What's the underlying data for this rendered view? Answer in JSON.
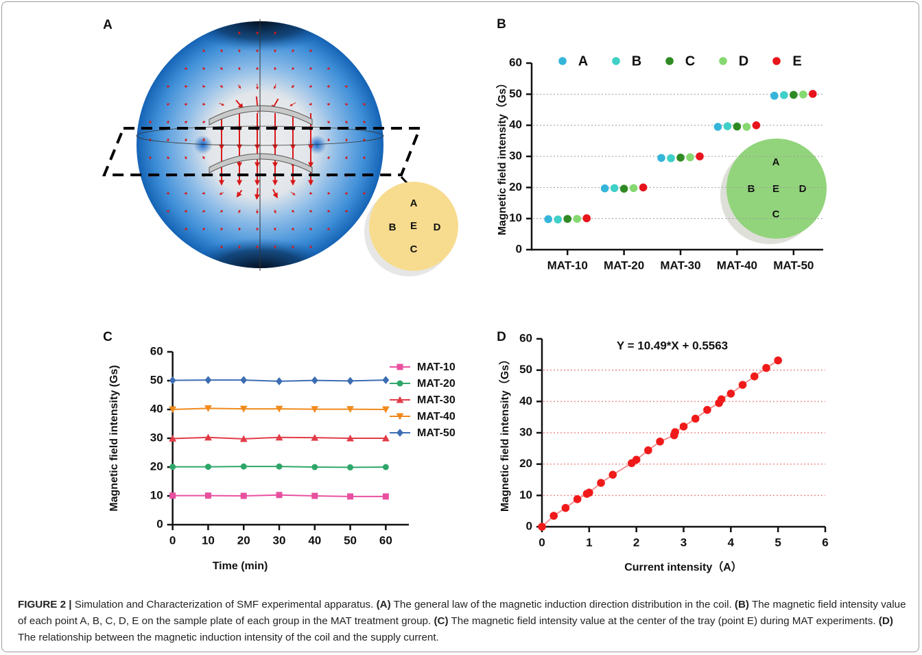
{
  "panel_a": {
    "label": "A",
    "inset_labels": [
      "A",
      "B",
      "E",
      "D",
      "C"
    ]
  },
  "chart_data": [
    {
      "type": "dot",
      "panel": "B",
      "categories": [
        "MAT-10",
        "MAT-20",
        "MAT-30",
        "MAT-40",
        "MAT-50"
      ],
      "series": [
        {
          "name": "A",
          "color": "#35b5da",
          "values": [
            9.8,
            19.7,
            29.5,
            39.5,
            49.5
          ]
        },
        {
          "name": "B",
          "color": "#3fd0c8",
          "values": [
            9.7,
            19.8,
            29.4,
            39.7,
            49.7
          ]
        },
        {
          "name": "C",
          "color": "#2f8a23",
          "values": [
            9.9,
            19.6,
            29.6,
            39.6,
            49.8
          ]
        },
        {
          "name": "D",
          "color": "#86d870",
          "values": [
            9.9,
            19.8,
            29.7,
            39.5,
            49.9
          ]
        },
        {
          "name": "E",
          "color": "#e8141b",
          "values": [
            10.1,
            20.0,
            30.0,
            40.0,
            50.1
          ]
        }
      ],
      "ylim": [
        0,
        60
      ],
      "yticks": [
        0,
        10,
        20,
        30,
        40,
        50,
        60
      ],
      "ylabel": "Magnetic field intensity（Gs）",
      "grid": true,
      "inset_labels": [
        "A",
        "B",
        "E",
        "D",
        "C"
      ]
    },
    {
      "type": "line",
      "panel": "C",
      "x": [
        0,
        10,
        20,
        30,
        40,
        50,
        60
      ],
      "series": [
        {
          "name": "MAT-10",
          "color": "#e8509f",
          "marker": "square",
          "values": [
            10.1,
            10.1,
            10.0,
            10.3,
            10.0,
            9.8,
            9.8
          ]
        },
        {
          "name": "MAT-20",
          "color": "#2ea66a",
          "marker": "circle",
          "values": [
            20.1,
            20.1,
            20.2,
            20.2,
            20.0,
            19.9,
            20.0
          ]
        },
        {
          "name": "MAT-30",
          "color": "#e23b48",
          "marker": "triangle-up",
          "values": [
            29.9,
            30.3,
            29.8,
            30.3,
            30.2,
            30.0,
            30.0
          ]
        },
        {
          "name": "MAT-40",
          "color": "#f08a1c",
          "marker": "triangle-down",
          "values": [
            40.0,
            40.4,
            40.2,
            40.2,
            40.1,
            40.1,
            40.0
          ]
        },
        {
          "name": "MAT-50",
          "color": "#3c6db3",
          "marker": "diamond",
          "values": [
            50.1,
            50.2,
            50.2,
            49.8,
            50.1,
            49.9,
            50.2
          ]
        }
      ],
      "xlim": [
        -6.5,
        66.5
      ],
      "xticks": [
        0,
        10,
        20,
        30,
        40,
        50,
        60
      ],
      "ylim": [
        0,
        60
      ],
      "yticks": [
        0,
        10,
        20,
        30,
        40,
        50,
        60
      ],
      "xlabel": "Time (min)",
      "ylabel": "Magnetic field intensity (Gs)"
    },
    {
      "type": "scatter",
      "panel": "D",
      "title": "Y = 10.49*X + 0.5563",
      "x": [
        0,
        0.25,
        0.5,
        0.75,
        0.95,
        1.0,
        1.25,
        1.5,
        1.9,
        2.0,
        2.25,
        2.5,
        2.8,
        2.82,
        3.0,
        3.25,
        3.5,
        3.75,
        3.8,
        4.0,
        4.25,
        4.5,
        4.75,
        5.0
      ],
      "values": [
        0,
        3.5,
        6.0,
        8.8,
        10.5,
        10.9,
        14.0,
        16.6,
        20.3,
        21.4,
        24.4,
        27.2,
        29.2,
        30.2,
        32.0,
        34.5,
        37.3,
        39.5,
        40.7,
        42.5,
        45.3,
        48.0,
        50.7,
        53.1
      ],
      "color": "#f01a1a",
      "line_color": "#f29090",
      "xlim": [
        0,
        6
      ],
      "xticks": [
        0,
        1,
        2,
        3,
        4,
        5,
        6
      ],
      "ylim": [
        0,
        60
      ],
      "yticks": [
        0,
        10,
        20,
        30,
        40,
        50,
        60
      ],
      "xlabel": "Current intensity（A）",
      "ylabel": "Magnetic field intensity（Gs）",
      "grid": true
    }
  ],
  "caption": {
    "parts": [
      "FIGURE 2 |",
      "Simulation and Characterization of SMF experimental apparatus.",
      "(A)",
      "The general law of the magnetic induction direction distribution in the coil.",
      "(B)",
      "The magnetic field intensity value of each point A, B, C, D, E on the sample plate of each group in the MAT treatment group.",
      "(C)",
      "The magnetic field intensity value at the center of the tray (point E) during MAT experiments.",
      "(D)",
      "The relationship between the magnetic induction intensity of the coil and the supply current."
    ]
  }
}
